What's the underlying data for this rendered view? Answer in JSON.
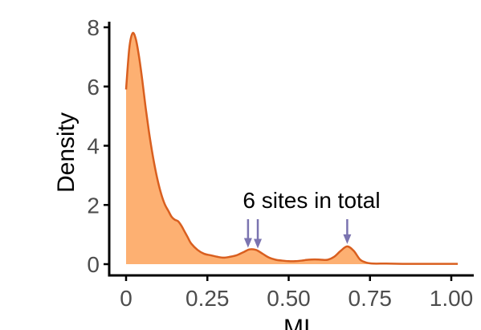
{
  "chart_data": {
    "type": "area",
    "title": "",
    "xlabel": "MI",
    "ylabel": "Density",
    "xlim": [
      0,
      1.0
    ],
    "ylim": [
      0,
      8
    ],
    "x_ticks": [
      0,
      0.25,
      0.5,
      0.75,
      1.0
    ],
    "x_tick_labels": [
      "0",
      "0.25",
      "0.50",
      "0.75",
      "1.00"
    ],
    "y_ticks": [
      0,
      2,
      4,
      6,
      8
    ],
    "y_tick_labels": [
      "0",
      "2",
      "4",
      "6",
      "8"
    ],
    "grid": false,
    "legend": "none",
    "series": [
      {
        "x": [
          0.0,
          0.01,
          0.02,
          0.03,
          0.04,
          0.05,
          0.06,
          0.07,
          0.08,
          0.09,
          0.1,
          0.11,
          0.12,
          0.13,
          0.14,
          0.15,
          0.16,
          0.17,
          0.18,
          0.19,
          0.2,
          0.22,
          0.24,
          0.26,
          0.28,
          0.3,
          0.32,
          0.34,
          0.36,
          0.38,
          0.4,
          0.42,
          0.44,
          0.46,
          0.48,
          0.5,
          0.52,
          0.54,
          0.56,
          0.58,
          0.6,
          0.62,
          0.64,
          0.66,
          0.68,
          0.7,
          0.72,
          0.74,
          0.76,
          0.8,
          0.85,
          0.9,
          0.95,
          1.0,
          1.02
        ],
        "values": [
          5.9,
          7.3,
          7.8,
          7.6,
          7.0,
          6.2,
          5.3,
          4.5,
          3.8,
          3.2,
          2.7,
          2.3,
          2.0,
          1.8,
          1.6,
          1.5,
          1.45,
          1.3,
          1.1,
          0.9,
          0.7,
          0.48,
          0.35,
          0.3,
          0.25,
          0.22,
          0.25,
          0.3,
          0.4,
          0.5,
          0.48,
          0.35,
          0.22,
          0.15,
          0.12,
          0.1,
          0.1,
          0.12,
          0.15,
          0.16,
          0.15,
          0.15,
          0.25,
          0.45,
          0.6,
          0.45,
          0.15,
          0.05,
          0.02,
          0.02,
          0.01,
          0.01,
          0.01,
          0.01,
          0.01
        ]
      }
    ],
    "annotation": {
      "text": "6 sites in total",
      "arrow_x": [
        0.375,
        0.405,
        0.68
      ]
    },
    "colors": {
      "fill": "#fdb072",
      "line": "#d95f1f",
      "arrow": "#7b74b0",
      "axis": "#000000"
    }
  }
}
